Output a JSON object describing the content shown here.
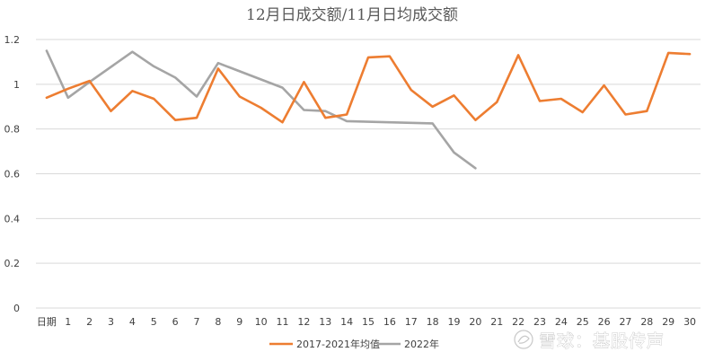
{
  "chart_data": {
    "type": "line",
    "title": "12月日成交额/11月日均成交额",
    "categories": [
      "日期",
      "1",
      "2",
      "3",
      "4",
      "5",
      "6",
      "7",
      "8",
      "9",
      "10",
      "11",
      "12",
      "13",
      "14",
      "15",
      "16",
      "17",
      "18",
      "19",
      "20",
      "21",
      "22",
      "23",
      "24",
      "25",
      "26",
      "27",
      "28",
      "29",
      "30"
    ],
    "ylim": [
      0,
      1.2
    ],
    "y_ticks": [
      "0",
      "0.2",
      "0.4",
      "0.6",
      "0.8",
      "1",
      "1.2"
    ],
    "grid": true,
    "legend_position": "bottom",
    "series": [
      {
        "name": "2017-2021年均值",
        "color": "#ed7d31",
        "values": [
          0.94,
          0.98,
          1.015,
          0.88,
          0.97,
          0.935,
          0.84,
          0.85,
          1.07,
          0.945,
          0.895,
          0.83,
          1.01,
          0.85,
          0.865,
          1.12,
          1.125,
          0.975,
          0.9,
          0.95,
          0.84,
          0.92,
          1.13,
          0.925,
          0.935,
          0.875,
          0.995,
          0.865,
          0.88,
          1.14,
          1.135
        ]
      },
      {
        "name": "2022年",
        "color": "#a5a5a5",
        "values": [
          1.15,
          0.94,
          1.01,
          null,
          1.145,
          1.08,
          1.03,
          0.945,
          1.095,
          null,
          null,
          0.985,
          0.885,
          0.88,
          0.835,
          null,
          null,
          null,
          0.825,
          0.695,
          0.625,
          null,
          null,
          null,
          null,
          null,
          null,
          null,
          null,
          null,
          null
        ]
      }
    ]
  },
  "watermark": {
    "text": "雪球：基股传声"
  }
}
